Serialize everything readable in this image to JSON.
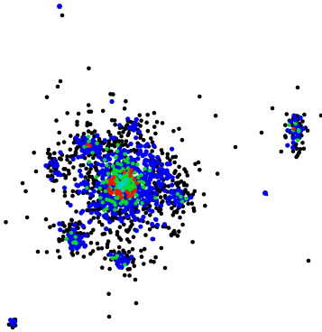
{
  "image": {
    "background": "#ffffff",
    "colors": {
      "outer": "#000000",
      "low": "#0000ff",
      "mid": "#00dd22",
      "high": "#ff1100",
      "peak": "#00cccc"
    }
  }
}
